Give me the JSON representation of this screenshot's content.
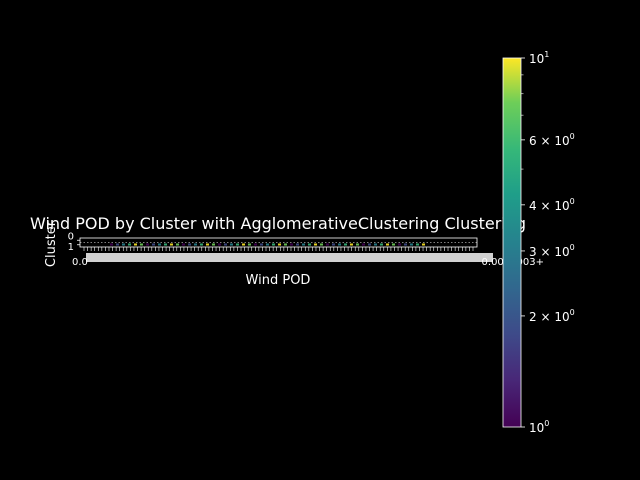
{
  "chart_data": {
    "type": "heatmap",
    "title": "Wind POD by Cluster with AgglomerativeClustering Clustering",
    "xlabel": "Wind POD",
    "ylabel": "Cluster",
    "y_categories": [
      "0",
      "1"
    ],
    "x_tick_first": "0.0",
    "x_tick_last": "0.0000003+",
    "colorbar": {
      "scale": "log",
      "range": [
        1,
        10
      ],
      "ticks": [
        {
          "value": 1,
          "base": "10",
          "exp": "0"
        },
        {
          "value": 2,
          "base": "2 × 10",
          "exp": "0"
        },
        {
          "value": 3,
          "base": "3 × 10",
          "exp": "0"
        },
        {
          "value": 4,
          "base": "4 × 10",
          "exp": "0"
        },
        {
          "value": 6,
          "base": "6 × 10",
          "exp": "0"
        },
        {
          "value": 10,
          "base": "10",
          "exp": "1"
        }
      ],
      "colormap": "viridis"
    },
    "grid": false,
    "background": "#000000",
    "foreground": "#ffffff"
  }
}
